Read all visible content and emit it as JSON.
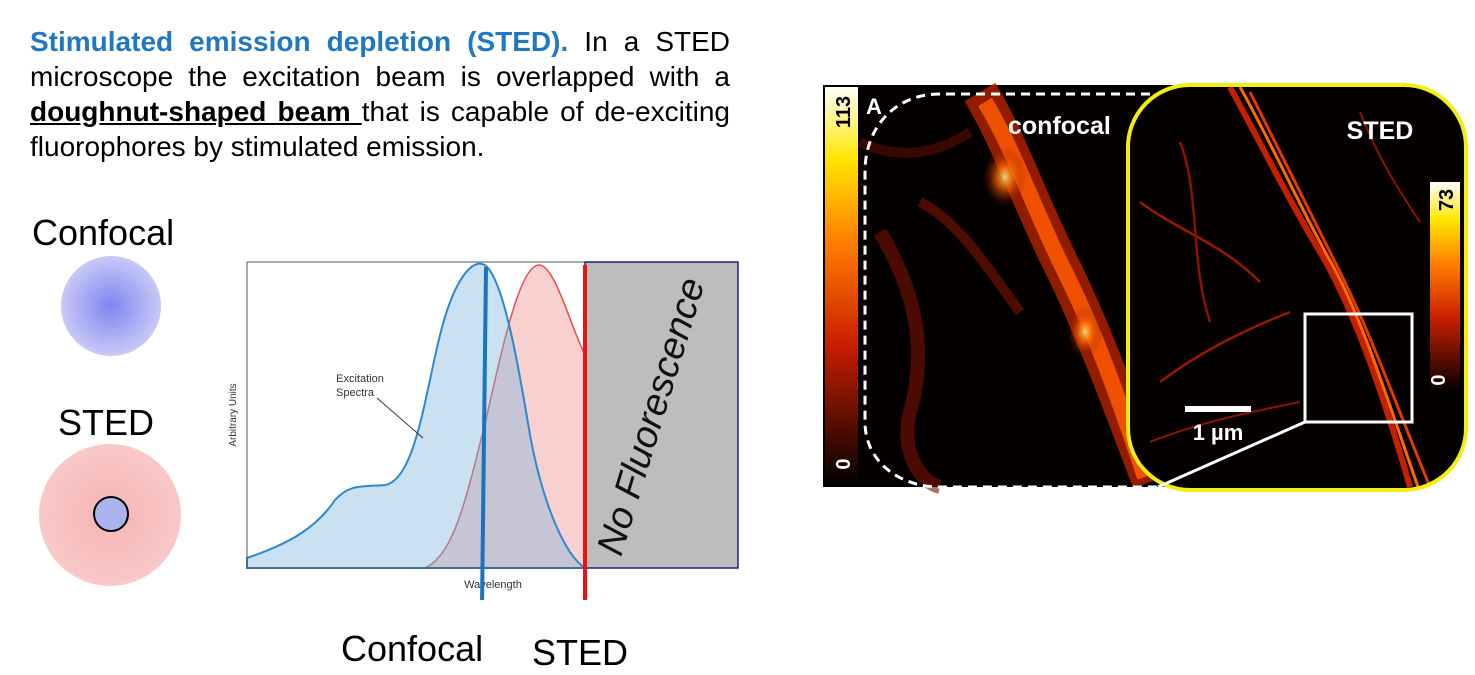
{
  "intro": {
    "lead": "Stimulated emission depletion (STED).",
    "text1": " In a STED microscope the excitation beam is overlapped with a ",
    "underlined": "doughnut-shaped beam ",
    "text2": "that is capable of de-exciting fluorophores by stimulated emission."
  },
  "psf": {
    "confocal_label": "Confocal",
    "sted_label": "STED"
  },
  "spectra": {
    "y_axis_label": "Arbitrary Units",
    "x_axis_label": "Wavelength",
    "annotation": "Excitation Spectra",
    "annotation_line1": "Excitation",
    "annotation_line2": "Spectra",
    "no_fluorescence": "No Fluorescence",
    "arrow_confocal_label": "Confocal",
    "arrow_sted_label": "STED",
    "colors": {
      "excitation": "#4a9fd0",
      "emission": "#e05050",
      "confocal_arrow": "#1a73c0",
      "sted_arrow": "#ee1111",
      "blocked": "#bdbdbd"
    }
  },
  "micrograph": {
    "panel_letter": "A",
    "confocal_title": "confocal",
    "sted_title": "STED",
    "confocal_scale_max": "113",
    "confocal_scale_min": "0",
    "sted_scale_max": "73",
    "sted_scale_min": "0",
    "scalebar_label": "1 µm"
  }
}
